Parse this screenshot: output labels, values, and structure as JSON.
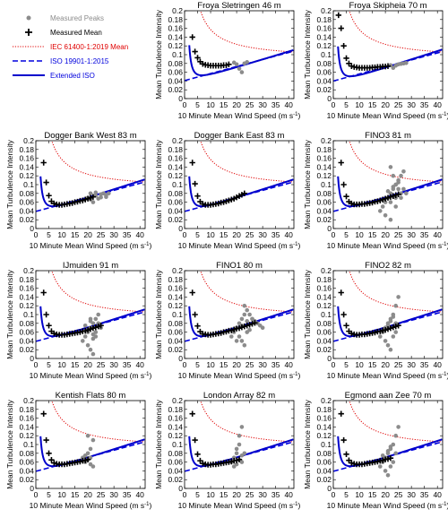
{
  "legend": {
    "entries": [
      {
        "key": "peaks",
        "label": "Measured Peaks",
        "color": "#8c8c8c",
        "text_color": "#8c8c8c"
      },
      {
        "key": "mean",
        "label": "Measured Mean",
        "color": "#000000",
        "text_color": "#000000"
      },
      {
        "key": "iec",
        "label": "IEC 61400-1:2019 Mean",
        "color": "#e00000",
        "text_color": "#e00000"
      },
      {
        "key": "iso",
        "label": "ISO 19901-1:2015",
        "color": "#0000dd",
        "text_color": "#0000dd"
      },
      {
        "key": "ext",
        "label": "Extended ISO",
        "color": "#0000cc",
        "text_color": "#0000dd"
      }
    ]
  },
  "axes": {
    "xlabel": "10 Minute Mean Wind Speed (m s",
    "xlabel_sup": "-1",
    "xlabel_tail": ")",
    "ylabel": "Mean Turbulence Intensity",
    "xlim": [
      0,
      42
    ],
    "ylim": [
      0,
      0.2
    ],
    "xticks": [
      "0",
      "5",
      "10",
      "15",
      "20",
      "25",
      "30",
      "35",
      "40"
    ],
    "yticks": [
      "0",
      "0.02",
      "0.04",
      "0.06",
      "0.08",
      "0.1",
      "0.12",
      "0.14",
      "0.16",
      "0.18",
      "0.2"
    ]
  },
  "chart_data": [
    {
      "type": "scatter",
      "title": "Froya Sletringen 46 m",
      "mean": {
        "x": [
          3,
          4,
          5,
          6,
          7,
          8,
          9,
          10,
          11,
          12,
          13,
          14,
          15,
          16,
          17
        ],
        "y": [
          0.14,
          0.107,
          0.093,
          0.084,
          0.079,
          0.077,
          0.076,
          0.075,
          0.075,
          0.075,
          0.075,
          0.075,
          0.076,
          0.076,
          0.078
        ]
      },
      "peaks": {
        "x": [
          19,
          20,
          21,
          22,
          23,
          24
        ],
        "y": [
          0.082,
          0.078,
          0.068,
          0.06,
          0.08,
          0.083
        ]
      },
      "iso": {
        "a": 0.041,
        "b": 0.0016,
        "x0": 0.5
      },
      "ext": {
        "a": 0.035,
        "b": 0.0018,
        "c": 0.27,
        "x0": 1.8
      }
    },
    {
      "type": "scatter",
      "title": "Froya Skipheia 70 m",
      "mean": {
        "x": [
          2,
          3,
          4,
          5,
          6,
          7,
          8,
          9,
          10,
          11,
          12,
          13,
          14,
          15,
          16,
          17,
          18,
          19,
          20,
          21
        ],
        "y": [
          0.19,
          0.16,
          0.12,
          0.092,
          0.08,
          0.074,
          0.072,
          0.071,
          0.07,
          0.07,
          0.07,
          0.07,
          0.07,
          0.071,
          0.071,
          0.072,
          0.072,
          0.073,
          0.073,
          0.074
        ]
      },
      "peaks": {
        "x": [
          22,
          23,
          24,
          25,
          26,
          27,
          28
        ],
        "y": [
          0.076,
          0.07,
          0.075,
          0.078,
          0.079,
          0.08,
          0.081
        ]
      },
      "iso": {
        "a": 0.04,
        "b": 0.0016,
        "x0": 0.5
      },
      "ext": {
        "a": 0.032,
        "b": 0.0019,
        "c": 0.27,
        "x0": 1.8
      }
    },
    {
      "type": "scatter",
      "title": "Dogger Bank West 83 m",
      "mean": {
        "x": [
          3,
          4,
          5,
          6,
          7,
          8,
          9,
          10,
          11,
          12,
          13,
          14,
          15,
          16,
          17,
          18,
          19,
          20,
          21,
          22
        ],
        "y": [
          0.15,
          0.105,
          0.075,
          0.062,
          0.057,
          0.055,
          0.054,
          0.054,
          0.055,
          0.056,
          0.057,
          0.058,
          0.06,
          0.061,
          0.063,
          0.064,
          0.066,
          0.068,
          0.07,
          0.072
        ]
      },
      "peaks": {
        "x": [
          20,
          21,
          22,
          23,
          24,
          25,
          26,
          27,
          28,
          21,
          23,
          25,
          27
        ],
        "y": [
          0.07,
          0.08,
          0.06,
          0.075,
          0.068,
          0.078,
          0.08,
          0.076,
          0.08,
          0.066,
          0.082,
          0.071,
          0.072
        ]
      },
      "iso": {
        "a": 0.039,
        "b": 0.0016,
        "x0": 0.5
      },
      "ext": {
        "a": 0.032,
        "b": 0.0019,
        "c": 0.27,
        "x0": 1.8
      }
    },
    {
      "type": "scatter",
      "title": "Dogger Bank East 83 m",
      "mean": {
        "x": [
          3,
          4,
          5,
          6,
          7,
          8,
          9,
          10,
          11,
          12,
          13,
          14,
          15,
          16,
          17,
          18,
          19,
          20,
          21,
          22,
          23
        ],
        "y": [
          0.15,
          0.102,
          0.074,
          0.061,
          0.056,
          0.054,
          0.054,
          0.054,
          0.055,
          0.056,
          0.057,
          0.059,
          0.06,
          0.062,
          0.064,
          0.066,
          0.068,
          0.071,
          0.074,
          0.077,
          0.08
        ]
      },
      "peaks": {
        "x": [],
        "y": []
      },
      "iso": {
        "a": 0.039,
        "b": 0.0016,
        "x0": 0.5
      },
      "ext": {
        "a": 0.032,
        "b": 0.0019,
        "c": 0.27,
        "x0": 1.8
      }
    },
    {
      "type": "scatter",
      "title": "FINO3 81 m",
      "mean": {
        "x": [
          3,
          4,
          5,
          6,
          7,
          8,
          9,
          10,
          11,
          12,
          13,
          14,
          15,
          16,
          17,
          18,
          19,
          20,
          21,
          22,
          23,
          24,
          25
        ],
        "y": [
          0.15,
          0.1,
          0.073,
          0.061,
          0.057,
          0.055,
          0.055,
          0.055,
          0.056,
          0.056,
          0.057,
          0.058,
          0.059,
          0.061,
          0.062,
          0.064,
          0.066,
          0.068,
          0.07,
          0.072,
          0.074,
          0.076,
          0.078
        ]
      },
      "peaks": {
        "x": [
          18,
          19,
          20,
          21,
          22,
          23,
          24,
          25,
          26,
          27,
          22,
          23,
          24,
          25,
          26,
          20,
          22,
          24,
          26,
          21,
          23,
          25,
          27,
          28,
          22,
          24
        ],
        "y": [
          0.04,
          0.05,
          0.06,
          0.07,
          0.08,
          0.09,
          0.1,
          0.11,
          0.12,
          0.13,
          0.14,
          0.12,
          0.1,
          0.09,
          0.08,
          0.03,
          0.02,
          0.05,
          0.07,
          0.085,
          0.095,
          0.105,
          0.09,
          0.08,
          0.06,
          0.07
        ]
      },
      "iso": {
        "a": 0.039,
        "b": 0.0016,
        "x0": 0.5
      },
      "ext": {
        "a": 0.032,
        "b": 0.0019,
        "c": 0.27,
        "x0": 1.8
      }
    },
    {
      "type": "scatter",
      "title": "IJmuiden 91 m",
      "mean": {
        "x": [
          3,
          4,
          5,
          6,
          7,
          8,
          9,
          10,
          11,
          12,
          13,
          14,
          15,
          16,
          17,
          18,
          19,
          20,
          21,
          22,
          23,
          24,
          25
        ],
        "y": [
          0.15,
          0.1,
          0.075,
          0.062,
          0.057,
          0.055,
          0.054,
          0.054,
          0.054,
          0.055,
          0.056,
          0.057,
          0.058,
          0.059,
          0.06,
          0.062,
          0.063,
          0.065,
          0.067,
          0.069,
          0.071,
          0.073,
          0.075
        ]
      },
      "peaks": {
        "x": [
          18,
          19,
          20,
          21,
          22,
          23,
          24,
          20,
          21,
          22,
          23,
          19,
          21,
          22,
          20,
          22,
          24,
          21,
          23,
          25
        ],
        "y": [
          0.04,
          0.05,
          0.06,
          0.07,
          0.08,
          0.09,
          0.1,
          0.03,
          0.02,
          0.01,
          0.05,
          0.075,
          0.085,
          0.045,
          0.065,
          0.055,
          0.08,
          0.09,
          0.06,
          0.07
        ]
      },
      "iso": {
        "a": 0.039,
        "b": 0.0016,
        "x0": 0.5
      },
      "ext": {
        "a": 0.032,
        "b": 0.0019,
        "c": 0.27,
        "x0": 1.8
      }
    },
    {
      "type": "scatter",
      "title": "FINO1 80 m",
      "mean": {
        "x": [
          3,
          4,
          5,
          6,
          7,
          8,
          9,
          10,
          11,
          12,
          13,
          14,
          15,
          16,
          17,
          18,
          19,
          20,
          21,
          22,
          23,
          24,
          25,
          26,
          27
        ],
        "y": [
          0.15,
          0.1,
          0.074,
          0.061,
          0.056,
          0.055,
          0.054,
          0.054,
          0.055,
          0.056,
          0.057,
          0.058,
          0.06,
          0.061,
          0.063,
          0.064,
          0.066,
          0.068,
          0.069,
          0.071,
          0.073,
          0.075,
          0.077,
          0.079,
          0.081
        ]
      },
      "peaks": {
        "x": [
          18,
          19,
          20,
          21,
          22,
          23,
          24,
          25,
          26,
          27,
          28,
          29,
          30,
          21,
          22,
          23,
          24,
          25,
          20,
          22,
          24,
          26,
          23
        ],
        "y": [
          0.05,
          0.06,
          0.07,
          0.08,
          0.09,
          0.1,
          0.11,
          0.1,
          0.09,
          0.085,
          0.08,
          0.075,
          0.07,
          0.05,
          0.04,
          0.03,
          0.06,
          0.065,
          0.04,
          0.075,
          0.085,
          0.09,
          0.12
        ]
      },
      "iso": {
        "a": 0.039,
        "b": 0.0016,
        "x0": 0.5
      },
      "ext": {
        "a": 0.032,
        "b": 0.0019,
        "c": 0.27,
        "x0": 1.8
      }
    },
    {
      "type": "scatter",
      "title": "FINO2 82 m",
      "mean": {
        "x": [
          3,
          4,
          5,
          6,
          7,
          8,
          9,
          10,
          11,
          12,
          13,
          14,
          15,
          16,
          17,
          18,
          19,
          20,
          21,
          22,
          23,
          24,
          25
        ],
        "y": [
          0.15,
          0.1,
          0.075,
          0.062,
          0.057,
          0.055,
          0.054,
          0.054,
          0.055,
          0.055,
          0.056,
          0.057,
          0.058,
          0.059,
          0.061,
          0.062,
          0.064,
          0.065,
          0.067,
          0.069,
          0.071,
          0.073,
          0.075
        ]
      },
      "peaks": {
        "x": [
          18,
          19,
          20,
          21,
          22,
          23,
          24,
          25,
          20,
          21,
          22,
          23,
          24,
          21,
          22,
          23,
          24
        ],
        "y": [
          0.05,
          0.06,
          0.07,
          0.08,
          0.09,
          0.1,
          0.12,
          0.14,
          0.04,
          0.03,
          0.02,
          0.05,
          0.06,
          0.075,
          0.085,
          0.095,
          0.08
        ]
      },
      "iso": {
        "a": 0.039,
        "b": 0.0016,
        "x0": 0.5
      },
      "ext": {
        "a": 0.032,
        "b": 0.0019,
        "c": 0.27,
        "x0": 1.8
      }
    },
    {
      "type": "scatter",
      "title": "Kentish Flats 80 m",
      "mean": {
        "x": [
          3,
          4,
          5,
          6,
          7,
          8,
          9,
          10,
          11,
          12,
          13,
          14,
          15,
          16,
          17,
          18,
          19,
          20
        ],
        "y": [
          0.17,
          0.11,
          0.08,
          0.065,
          0.058,
          0.056,
          0.055,
          0.055,
          0.055,
          0.056,
          0.057,
          0.058,
          0.059,
          0.06,
          0.061,
          0.063,
          0.064,
          0.066
        ]
      },
      "peaks": {
        "x": [
          18,
          19,
          20,
          21,
          22,
          19,
          20,
          21,
          22,
          20,
          21
        ],
        "y": [
          0.07,
          0.075,
          0.08,
          0.09,
          0.11,
          0.06,
          0.065,
          0.055,
          0.05,
          0.12,
          0.07
        ]
      },
      "iso": {
        "a": 0.039,
        "b": 0.0016,
        "x0": 0.5
      },
      "ext": {
        "a": 0.032,
        "b": 0.0019,
        "c": 0.27,
        "x0": 1.8
      }
    },
    {
      "type": "scatter",
      "title": "London Array 82 m",
      "mean": {
        "x": [
          3,
          4,
          5,
          6,
          7,
          8,
          9,
          10,
          11,
          12,
          13,
          14,
          15,
          16,
          17,
          18,
          19,
          20,
          21
        ],
        "y": [
          0.17,
          0.11,
          0.078,
          0.063,
          0.057,
          0.055,
          0.054,
          0.054,
          0.055,
          0.055,
          0.056,
          0.057,
          0.058,
          0.059,
          0.06,
          0.061,
          0.063,
          0.064,
          0.066
        ]
      },
      "peaks": {
        "x": [
          18,
          19,
          20,
          21,
          22,
          23,
          19,
          20,
          21,
          22,
          20,
          21,
          22
        ],
        "y": [
          0.06,
          0.07,
          0.08,
          0.12,
          0.14,
          0.08,
          0.05,
          0.055,
          0.065,
          0.075,
          0.09,
          0.1,
          0.06
        ]
      },
      "iso": {
        "a": 0.039,
        "b": 0.0016,
        "x0": 0.5
      },
      "ext": {
        "a": 0.032,
        "b": 0.0019,
        "c": 0.27,
        "x0": 1.8
      }
    },
    {
      "type": "scatter",
      "title": "Egmond aan Zee 70 m",
      "mean": {
        "x": [
          3,
          4,
          5,
          6,
          7,
          8,
          9,
          10,
          11,
          12,
          13,
          14,
          15,
          16,
          17,
          18,
          19,
          20,
          21,
          22
        ],
        "y": [
          0.17,
          0.11,
          0.078,
          0.064,
          0.058,
          0.056,
          0.055,
          0.055,
          0.055,
          0.056,
          0.057,
          0.058,
          0.059,
          0.06,
          0.061,
          0.063,
          0.064,
          0.066,
          0.067,
          0.069
        ]
      },
      "peaks": {
        "x": [
          18,
          19,
          20,
          21,
          22,
          23,
          24,
          25,
          20,
          21,
          22,
          23,
          19,
          21,
          22,
          24
        ],
        "y": [
          0.05,
          0.06,
          0.07,
          0.08,
          0.09,
          0.1,
          0.12,
          0.14,
          0.04,
          0.03,
          0.05,
          0.06,
          0.075,
          0.085,
          0.095,
          0.08
        ]
      },
      "iso": {
        "a": 0.039,
        "b": 0.0016,
        "x0": 0.5
      },
      "ext": {
        "a": 0.032,
        "b": 0.0019,
        "c": 0.27,
        "x0": 1.8
      }
    }
  ]
}
